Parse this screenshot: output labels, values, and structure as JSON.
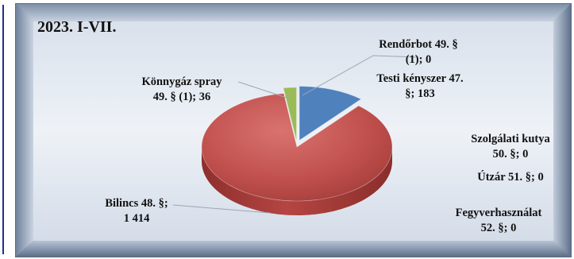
{
  "chart_data": {
    "type": "pie",
    "title": "2023. I-VII.",
    "slices": [
      {
        "name": "Rendőrbot 49. § (1)",
        "value": 0,
        "label_lines": [
          "Rendőrbot 49. §",
          "(1); 0"
        ],
        "color": "#4f81bd"
      },
      {
        "name": "Testi kényszer 47. §",
        "value": 183,
        "label_lines": [
          "Testi kényszer 47.",
          "§; 183"
        ],
        "color": "#4f81bd"
      },
      {
        "name": "Szolgálati kutya 50. §",
        "value": 0,
        "label_lines": [
          "Szolgálati kutya",
          "50. §; 0"
        ],
        "color": "#8064a2"
      },
      {
        "name": "Útzár 51. §",
        "value": 0,
        "label_lines": [
          "Útzár 51. §; 0"
        ],
        "color": "#4bacc6"
      },
      {
        "name": "Fegyverhasználat 52. §",
        "value": 0,
        "label_lines": [
          "Fegyverhasználat",
          "52. §; 0"
        ],
        "color": "#f79646"
      },
      {
        "name": "Bilincs 48. §",
        "value": 1414,
        "label_lines": [
          "Bilincs 48. §;",
          "1 414"
        ],
        "color": "#c0504d"
      },
      {
        "name": "Könnygáz spray 49. § (1)",
        "value": 36,
        "label_lines": [
          "Könnygáz spray",
          "49. § (1); 36"
        ],
        "color": "#9bbb59"
      }
    ]
  }
}
